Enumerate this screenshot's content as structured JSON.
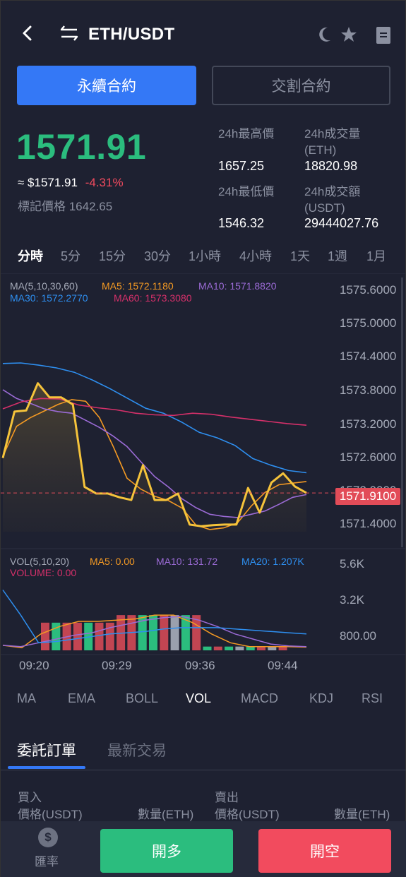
{
  "header": {
    "title": "ETH/USDT",
    "icons": [
      "back-icon",
      "swap-icon",
      "moon-icon",
      "star-icon",
      "document-icon"
    ]
  },
  "contract_tabs": {
    "perpetual": "永續合約",
    "delivery": "交割合約"
  },
  "ticker": {
    "last_price": "1571.91",
    "usd_value": "≈ $1571.91",
    "change_pct": "-4.31%",
    "mark_price": "標記價格 1642.65",
    "high_label": "24h最高價",
    "high_value": "1657.25",
    "low_label": "24h最低價",
    "low_value": "1546.32",
    "vol_eth_label": "24h成交量\n(ETH)",
    "vol_eth_value": "18820.98",
    "vol_usdt_label": "24h成交額\n(USDT)",
    "vol_usdt_value": "29444027.76"
  },
  "intervals": [
    "分時",
    "5分",
    "15分",
    "30分",
    "1小時",
    "4小時",
    "1天",
    "1週",
    "1月"
  ],
  "active_interval": "分時",
  "ma_legend": {
    "title": "MA(5,10,30,60)",
    "ma5": "MA5: 1572.1180",
    "ma10": "MA10: 1571.8820",
    "ma30": "MA30: 1572.2770",
    "ma60": "MA60: 1573.3080"
  },
  "vol_legend": {
    "title": "VOL(5,10,20)",
    "ma5": "MA5: 0.00",
    "ma10": "MA10: 131.72",
    "ma20": "MA20: 1.207K",
    "volume": "VOLUME: 0.00"
  },
  "colors": {
    "price_line": "#f5c33b",
    "ma5": "#f59a23",
    "ma10": "#9b6bd6",
    "ma30": "#2e8ff0",
    "ma60": "#d6306a",
    "up": "#2bbd7e",
    "down": "#e24c58",
    "accent": "#3478f6"
  },
  "chart_data": [
    {
      "type": "line",
      "x_ticks": [
        "09:20",
        "09:29",
        "09:36",
        "09:44"
      ],
      "y_ticks": [
        "1575.6000",
        "1575.0000",
        "1574.4000",
        "1573.8000",
        "1573.2000",
        "1572.6000",
        "1572.0000",
        "1571.4000"
      ],
      "ylim": [
        1571.2,
        1575.7
      ],
      "current_price_tag": "1571.9100",
      "series": [
        {
          "name": "MA5",
          "values": [
            1572.58,
            1573.13,
            1573.29,
            1573.41,
            1573.53,
            1573.62,
            1573.59,
            1573.29,
            1572.76,
            1572.18,
            1571.98,
            1571.85,
            1571.77,
            1571.63,
            1571.32,
            1571.24,
            1571.27,
            1571.36,
            1571.67,
            1571.92,
            1572.06,
            1572.09,
            1572.12
          ]
        },
        {
          "name": "MA10",
          "values": [
            1573.8,
            1573.64,
            1573.55,
            1573.45,
            1573.4,
            1573.37,
            1573.24,
            1573.11,
            1572.95,
            1572.76,
            1572.48,
            1572.21,
            1572.02,
            1571.8,
            1571.64,
            1571.52,
            1571.48,
            1571.46,
            1571.52,
            1571.58,
            1571.7,
            1571.83,
            1571.88
          ]
        },
        {
          "name": "MA30",
          "values": [
            1574.28,
            1574.29,
            1574.25,
            1574.2,
            1574.12,
            1573.98,
            1573.82,
            1573.64,
            1573.46,
            1573.37,
            1573.21,
            1573.02,
            1572.92,
            1572.78,
            1572.54,
            1572.42,
            1572.32,
            1572.28
          ]
        },
        {
          "name": "MA60",
          "values": [
            1573.45,
            1573.58,
            1573.64,
            1573.63,
            1573.52,
            1573.47,
            1573.43,
            1573.37,
            1573.34,
            1573.33,
            1573.37,
            1573.35,
            1573.3,
            1573.26,
            1573.22,
            1573.18,
            1573.15
          ]
        },
        {
          "name": "Price",
          "values": [
            1572.55,
            1573.4,
            1573.42,
            1573.92,
            1573.66,
            1573.66,
            1573.53,
            1572.02,
            1571.9,
            1571.9,
            1571.83,
            1571.78,
            1572.42,
            1571.78,
            1571.78,
            1571.9,
            1571.33,
            1571.3,
            1571.32,
            1571.33,
            1571.33,
            1572.0,
            1571.55,
            1572.1,
            1572.27,
            1572.03,
            1571.91
          ]
        }
      ]
    },
    {
      "type": "bar",
      "y_ticks": [
        "5.6K",
        "3.2K",
        "800.00"
      ],
      "ylim": [
        0,
        6400
      ],
      "bars": [
        {
          "value": 2200,
          "dir": "down"
        },
        {
          "value": 2200,
          "dir": "up"
        },
        {
          "value": 2200,
          "dir": "down"
        },
        {
          "value": 2200,
          "dir": "down"
        },
        {
          "value": 2200,
          "dir": "up"
        },
        {
          "value": 2200,
          "dir": "down"
        },
        {
          "value": 2200,
          "dir": "down"
        },
        {
          "value": 2800,
          "dir": "down"
        },
        {
          "value": 2800,
          "dir": "down"
        },
        {
          "value": 2800,
          "dir": "up"
        },
        {
          "value": 2800,
          "dir": "up"
        },
        {
          "value": 2800,
          "dir": "down"
        },
        {
          "value": 2800,
          "dir": "flat"
        },
        {
          "value": 2800,
          "dir": "up"
        },
        {
          "value": 2800,
          "dir": "down"
        },
        {
          "value": 300,
          "dir": "up"
        },
        {
          "value": 300,
          "dir": "down"
        },
        {
          "value": 300,
          "dir": "up"
        },
        {
          "value": 300,
          "dir": "flat"
        },
        {
          "value": 300,
          "dir": "up"
        },
        {
          "value": 300,
          "dir": "down"
        },
        {
          "value": 300,
          "dir": "flat"
        },
        {
          "value": 300,
          "dir": "down"
        }
      ],
      "series": [
        {
          "name": "MA5",
          "values": [
            400,
            200,
            1300,
            1900,
            2300,
            2300,
            2400,
            2500,
            2800,
            2800,
            2200,
            1300,
            600,
            300,
            300,
            300,
            250
          ]
        },
        {
          "name": "MA10",
          "values": [
            400,
            300,
            600,
            900,
            1200,
            1400,
            1800,
            2100,
            2400,
            2600,
            2700,
            2400,
            1900,
            1300,
            900,
            500,
            350,
            300
          ]
        },
        {
          "name": "MA20",
          "values": [
            4800,
            2800,
            600,
            700,
            900,
            1100,
            1300,
            1400,
            1500,
            1700,
            1800,
            1800,
            1800,
            1700,
            1600,
            1500,
            1400,
            1300
          ]
        }
      ]
    }
  ],
  "indicators": [
    "MA",
    "EMA",
    "BOLL",
    "VOL",
    "MACD",
    "KDJ",
    "RSI"
  ],
  "active_indicator": "VOL",
  "order_tabs": [
    "委託訂單",
    "最新交易"
  ],
  "order_book": {
    "buy": "買入",
    "sell": "賣出",
    "buy_price": "價格(USDT)",
    "buy_qty": "數量(ETH)",
    "sell_price": "價格(USDT)",
    "sell_qty": "數量(ETH)"
  },
  "bottom": {
    "rate_icon": "$",
    "rate_label": "匯率",
    "long": "開多",
    "short": "開空"
  }
}
